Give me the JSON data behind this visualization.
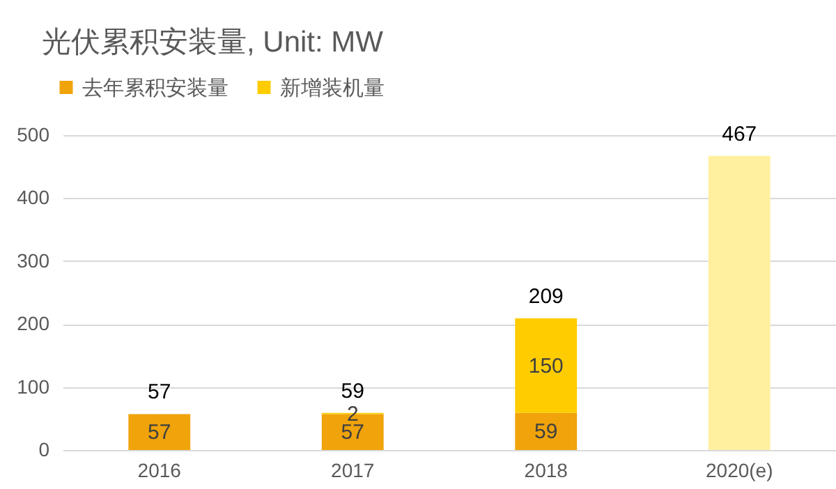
{
  "chart_data": {
    "type": "bar",
    "title": "光伏累积安装量, Unit: MW",
    "categories": [
      "2016",
      "2017",
      "2018",
      "2020(e)"
    ],
    "stacked": true,
    "series": [
      {
        "name": "去年累积安装量",
        "color": "#f0a30a",
        "values": [
          57,
          57,
          59,
          null
        ],
        "value_labels": [
          "57",
          "57",
          "59",
          null
        ]
      },
      {
        "name": "新增装机量",
        "color": "#ffcc00",
        "colors": [
          null,
          "#ffcc00",
          "#ffcc00",
          "#fff0a0"
        ],
        "values": [
          null,
          2,
          150,
          467
        ],
        "value_labels": [
          null,
          "2",
          "150",
          null
        ]
      }
    ],
    "totals": [
      "57",
      "59",
      "209",
      "467"
    ],
    "ylim": [
      0,
      500
    ],
    "yticks": [
      0,
      100,
      200,
      300,
      400,
      500
    ],
    "grid": "y",
    "legend": "top left"
  }
}
